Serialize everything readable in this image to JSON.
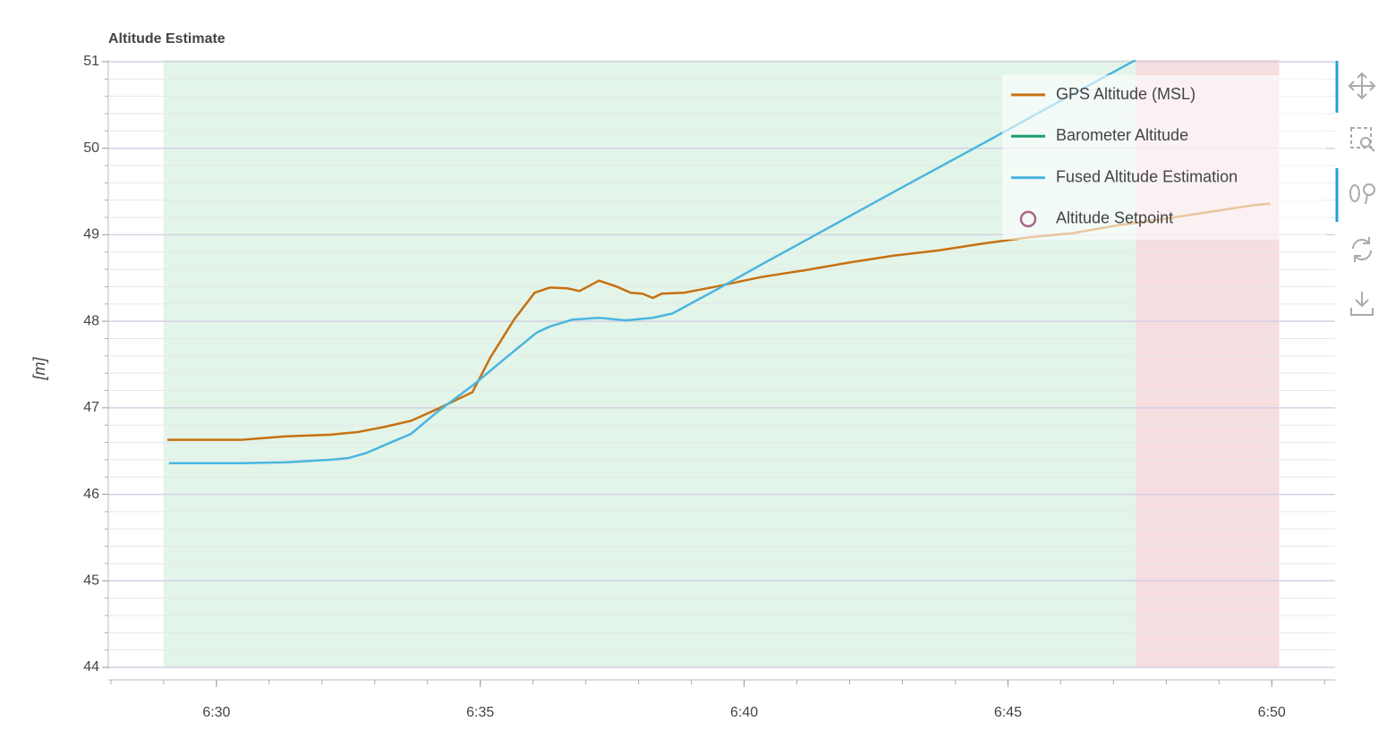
{
  "chart_data": {
    "type": "line",
    "title": "Altitude Estimate",
    "ylabel": "[m]",
    "xlim": [
      387.95,
      411.2
    ],
    "xticks": [
      {
        "value": 390,
        "label": "6:30"
      },
      {
        "value": 395,
        "label": "6:35"
      },
      {
        "value": 400,
        "label": "6:40"
      },
      {
        "value": 405,
        "label": "6:45"
      },
      {
        "value": 410,
        "label": "6:50"
      }
    ],
    "ylim": [
      44,
      51
    ],
    "yticks": [
      44,
      45,
      46,
      47,
      48,
      49,
      50,
      51
    ],
    "grid": true,
    "legend": "top-right",
    "regions": [
      {
        "start": 389.0,
        "end": 407.42,
        "color": "#e2f5e8"
      },
      {
        "start": 407.42,
        "end": 410.14,
        "color": "#f6dde0"
      }
    ],
    "series": [
      {
        "name": "GPS Altitude (MSL)",
        "color": "#c8700f",
        "x": [
          389.07,
          389.63,
          390.47,
          391.32,
          392.17,
          392.68,
          393.19,
          393.69,
          394.2,
          394.54,
          394.85,
          395.19,
          395.64,
          396.03,
          396.32,
          396.66,
          396.88,
          397.25,
          397.59,
          397.85,
          398.07,
          398.27,
          398.44,
          398.86,
          399.46,
          400.31,
          401.15,
          402.0,
          402.85,
          403.69,
          404.54,
          405.39,
          406.24,
          407.08,
          407.93,
          408.78,
          409.63,
          409.97
        ],
        "values": [
          46.63,
          46.63,
          46.63,
          46.67,
          46.69,
          46.72,
          46.78,
          46.85,
          46.99,
          47.09,
          47.18,
          47.58,
          48.02,
          48.33,
          48.39,
          48.38,
          48.35,
          48.47,
          48.4,
          48.33,
          48.32,
          48.27,
          48.32,
          48.33,
          48.4,
          48.51,
          48.59,
          48.68,
          48.76,
          48.82,
          48.9,
          48.97,
          49.02,
          49.11,
          49.18,
          49.26,
          49.34,
          49.36
        ]
      },
      {
        "name": "Barometer Altitude",
        "color": "#1a9e6e",
        "x": [],
        "values": []
      },
      {
        "name": "Fused Altitude Estimation",
        "color": "#4bb5df",
        "x": [
          389.1,
          390.47,
          391.32,
          392.17,
          392.51,
          392.85,
          393.19,
          393.69,
          394.2,
          394.88,
          395.39,
          396.07,
          396.32,
          396.75,
          397.25,
          397.76,
          398.27,
          398.64,
          399.46,
          400.31,
          401.15,
          402.85,
          404.54,
          406.24,
          407.42
        ],
        "values": [
          46.36,
          46.36,
          46.37,
          46.4,
          46.42,
          46.48,
          46.57,
          46.7,
          46.96,
          47.27,
          47.53,
          47.87,
          47.94,
          48.02,
          48.04,
          48.01,
          48.04,
          48.09,
          48.36,
          48.65,
          48.93,
          49.5,
          50.06,
          50.63,
          51.02
        ]
      },
      {
        "name": "Altitude Setpoint",
        "color": "#a8688a",
        "marker": "circle",
        "x": [],
        "values": []
      }
    ]
  }
}
